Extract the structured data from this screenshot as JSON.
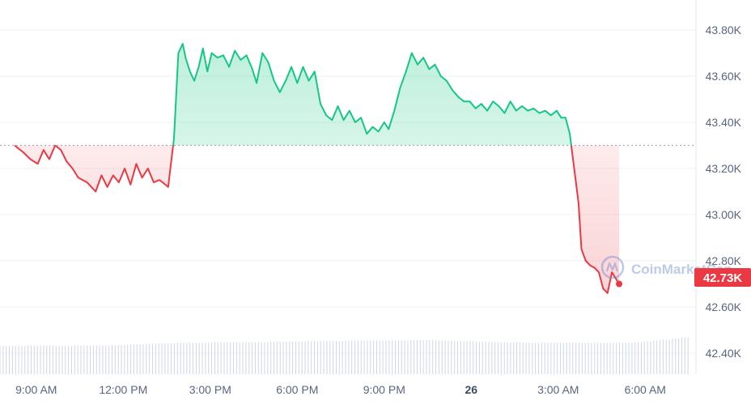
{
  "watermark": {
    "text": "CoinMarketCap",
    "icon": "coinmarketcap-logo-icon"
  },
  "colors": {
    "up": "#16c784",
    "down": "#ea3943",
    "grid": "#f0f1f3",
    "volume": "#cfd6e4",
    "tick": "#58667e",
    "baseline": "#a6b0c3"
  },
  "chart_data": {
    "type": "area",
    "baseline": 43.3,
    "baseline_style": "dotted",
    "ylim": [
      42.3,
      43.95
    ],
    "y_unit": "K",
    "y_ticks": [
      "43.80K",
      "43.60K",
      "43.40K",
      "43.20K",
      "43.00K",
      "42.80K",
      "42.60K",
      "42.40K"
    ],
    "y_tick_values": [
      43.8,
      43.6,
      43.4,
      43.2,
      43.0,
      42.8,
      42.6,
      42.4
    ],
    "x_ticks": [
      {
        "label": "9:00 AM",
        "t": 0.75
      },
      {
        "label": "12:00 PM",
        "t": 3.75
      },
      {
        "label": "3:00 PM",
        "t": 6.75
      },
      {
        "label": "6:00 PM",
        "t": 9.75
      },
      {
        "label": "9:00 PM",
        "t": 12.75
      },
      {
        "label": "26",
        "t": 15.75,
        "bold": true
      },
      {
        "label": "3:00 AM",
        "t": 18.75
      },
      {
        "label": "6:00 AM",
        "t": 21.75
      }
    ],
    "t_range": [
      -0.5,
      23.5
    ],
    "current_price": {
      "label": "42.73K",
      "value": 42.7
    },
    "series": [
      {
        "values": [
          [
            0.0,
            43.3
          ],
          [
            0.3,
            43.27
          ],
          [
            0.55,
            43.24
          ],
          [
            0.8,
            43.22
          ],
          [
            1.0,
            43.28
          ],
          [
            1.2,
            43.24
          ],
          [
            1.4,
            43.3
          ],
          [
            1.6,
            43.28
          ],
          [
            1.8,
            43.23
          ],
          [
            2.0,
            43.2
          ],
          [
            2.2,
            43.16
          ],
          [
            2.5,
            43.14
          ],
          [
            2.8,
            43.1
          ],
          [
            3.0,
            43.17
          ],
          [
            3.2,
            43.12
          ],
          [
            3.4,
            43.17
          ],
          [
            3.6,
            43.14
          ],
          [
            3.8,
            43.2
          ],
          [
            4.0,
            43.13
          ],
          [
            4.2,
            43.22
          ],
          [
            4.4,
            43.16
          ],
          [
            4.6,
            43.2
          ],
          [
            4.8,
            43.14
          ],
          [
            5.0,
            43.15
          ],
          [
            5.2,
            43.13
          ],
          [
            5.3,
            43.12
          ],
          [
            5.5,
            43.33
          ],
          [
            5.65,
            43.7
          ],
          [
            5.8,
            43.74
          ],
          [
            5.9,
            43.68
          ],
          [
            6.05,
            43.62
          ],
          [
            6.2,
            43.58
          ],
          [
            6.35,
            43.64
          ],
          [
            6.5,
            43.72
          ],
          [
            6.65,
            43.62
          ],
          [
            6.8,
            43.7
          ],
          [
            7.0,
            43.68
          ],
          [
            7.2,
            43.69
          ],
          [
            7.4,
            43.64
          ],
          [
            7.6,
            43.71
          ],
          [
            7.8,
            43.67
          ],
          [
            8.0,
            43.69
          ],
          [
            8.2,
            43.63
          ],
          [
            8.35,
            43.57
          ],
          [
            8.55,
            43.7
          ],
          [
            8.75,
            43.66
          ],
          [
            8.95,
            43.58
          ],
          [
            9.15,
            43.53
          ],
          [
            9.35,
            43.58
          ],
          [
            9.55,
            43.64
          ],
          [
            9.75,
            43.57
          ],
          [
            9.95,
            43.64
          ],
          [
            10.15,
            43.58
          ],
          [
            10.35,
            43.62
          ],
          [
            10.55,
            43.48
          ],
          [
            10.75,
            43.43
          ],
          [
            10.95,
            43.41
          ],
          [
            11.15,
            43.47
          ],
          [
            11.35,
            43.41
          ],
          [
            11.55,
            43.45
          ],
          [
            11.75,
            43.4
          ],
          [
            11.95,
            43.42
          ],
          [
            12.15,
            43.35
          ],
          [
            12.35,
            43.38
          ],
          [
            12.55,
            43.36
          ],
          [
            12.75,
            43.4
          ],
          [
            12.9,
            43.37
          ],
          [
            13.1,
            43.45
          ],
          [
            13.3,
            43.55
          ],
          [
            13.5,
            43.62
          ],
          [
            13.7,
            43.7
          ],
          [
            13.9,
            43.65
          ],
          [
            14.1,
            43.68
          ],
          [
            14.3,
            43.63
          ],
          [
            14.5,
            43.65
          ],
          [
            14.7,
            43.6
          ],
          [
            14.9,
            43.58
          ],
          [
            15.1,
            43.54
          ],
          [
            15.3,
            43.51
          ],
          [
            15.5,
            43.49
          ],
          [
            15.7,
            43.49
          ],
          [
            15.9,
            43.46
          ],
          [
            16.1,
            43.48
          ],
          [
            16.3,
            43.45
          ],
          [
            16.5,
            43.49
          ],
          [
            16.7,
            43.47
          ],
          [
            16.9,
            43.44
          ],
          [
            17.1,
            43.49
          ],
          [
            17.3,
            43.45
          ],
          [
            17.5,
            43.47
          ],
          [
            17.7,
            43.45
          ],
          [
            17.9,
            43.46
          ],
          [
            18.1,
            43.44
          ],
          [
            18.3,
            43.45
          ],
          [
            18.5,
            43.43
          ],
          [
            18.7,
            43.45
          ],
          [
            18.85,
            43.42
          ],
          [
            19.0,
            43.42
          ],
          [
            19.15,
            43.35
          ],
          [
            19.3,
            43.2
          ],
          [
            19.45,
            43.05
          ],
          [
            19.55,
            42.85
          ],
          [
            19.7,
            42.8
          ],
          [
            19.85,
            42.78
          ],
          [
            20.0,
            42.77
          ],
          [
            20.15,
            42.75
          ],
          [
            20.3,
            42.68
          ],
          [
            20.45,
            42.66
          ],
          [
            20.6,
            42.75
          ],
          [
            20.75,
            42.72
          ],
          [
            20.85,
            42.7
          ]
        ]
      }
    ],
    "volume": {
      "ylim": [
        0,
        1
      ],
      "values": [
        0.52,
        0.52,
        0.52,
        0.53,
        0.53,
        0.53,
        0.52,
        0.52,
        0.53,
        0.53,
        0.53,
        0.53,
        0.54,
        0.54,
        0.55,
        0.55,
        0.56,
        0.57,
        0.57,
        0.58,
        0.58,
        0.58,
        0.58,
        0.59,
        0.59,
        0.59,
        0.59,
        0.59,
        0.59,
        0.6,
        0.6,
        0.6,
        0.6,
        0.61,
        0.61,
        0.61,
        0.61,
        0.62,
        0.62,
        0.62,
        0.62,
        0.62,
        0.62,
        0.62,
        0.63,
        0.63,
        0.63,
        0.62,
        0.62,
        0.61,
        0.61,
        0.6,
        0.6,
        0.59,
        0.59,
        0.59,
        0.58,
        0.58,
        0.58,
        0.58,
        0.58,
        0.58,
        0.58,
        0.58,
        0.58,
        0.58,
        0.58,
        0.58,
        0.59,
        0.6,
        0.62,
        0.64,
        0.66,
        0.68
      ]
    }
  }
}
